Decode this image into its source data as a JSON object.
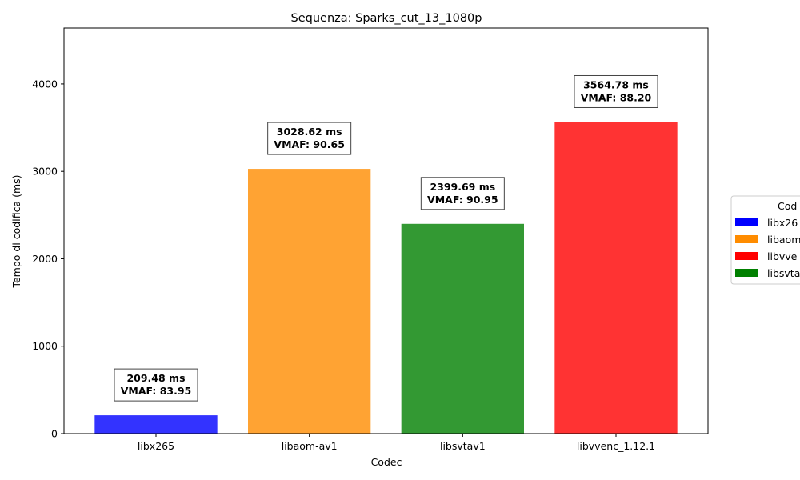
{
  "chart_data": {
    "type": "bar",
    "title": "Sequenza: Sparks_cut_13_1080p",
    "xlabel": "Codec",
    "ylabel": "Tempo di codifica (ms)",
    "ylim": [
      0,
      4640
    ],
    "yticks": [
      0,
      1000,
      2000,
      3000,
      4000
    ],
    "grid": false,
    "categories": [
      "libx265",
      "libaom-av1",
      "libsvtav1",
      "libvvenc_1.12.1"
    ],
    "values": [
      209.48,
      3028.62,
      2399.69,
      3564.78
    ],
    "vmaf": [
      83.95,
      90.65,
      90.95,
      88.2
    ],
    "annotations": [
      [
        "209.48 ms",
        "VMAF: 83.95"
      ],
      [
        "3028.62 ms",
        "VMAF: 90.65"
      ],
      [
        "2399.69 ms",
        "VMAF: 90.95"
      ],
      [
        "3564.78 ms",
        "VMAF: 88.20"
      ]
    ],
    "bar_colors": [
      "#3333ff",
      "#ffa333",
      "#339933",
      "#ff3333"
    ],
    "legend": {
      "title": "Cod",
      "placement": "right",
      "entries": [
        {
          "label": "libx26",
          "color": "#0000ff"
        },
        {
          "label": "libaom",
          "color": "#ff8c00"
        },
        {
          "label": "libvve",
          "color": "#ff0000"
        },
        {
          "label": "libsvta",
          "color": "#008000"
        }
      ]
    }
  }
}
